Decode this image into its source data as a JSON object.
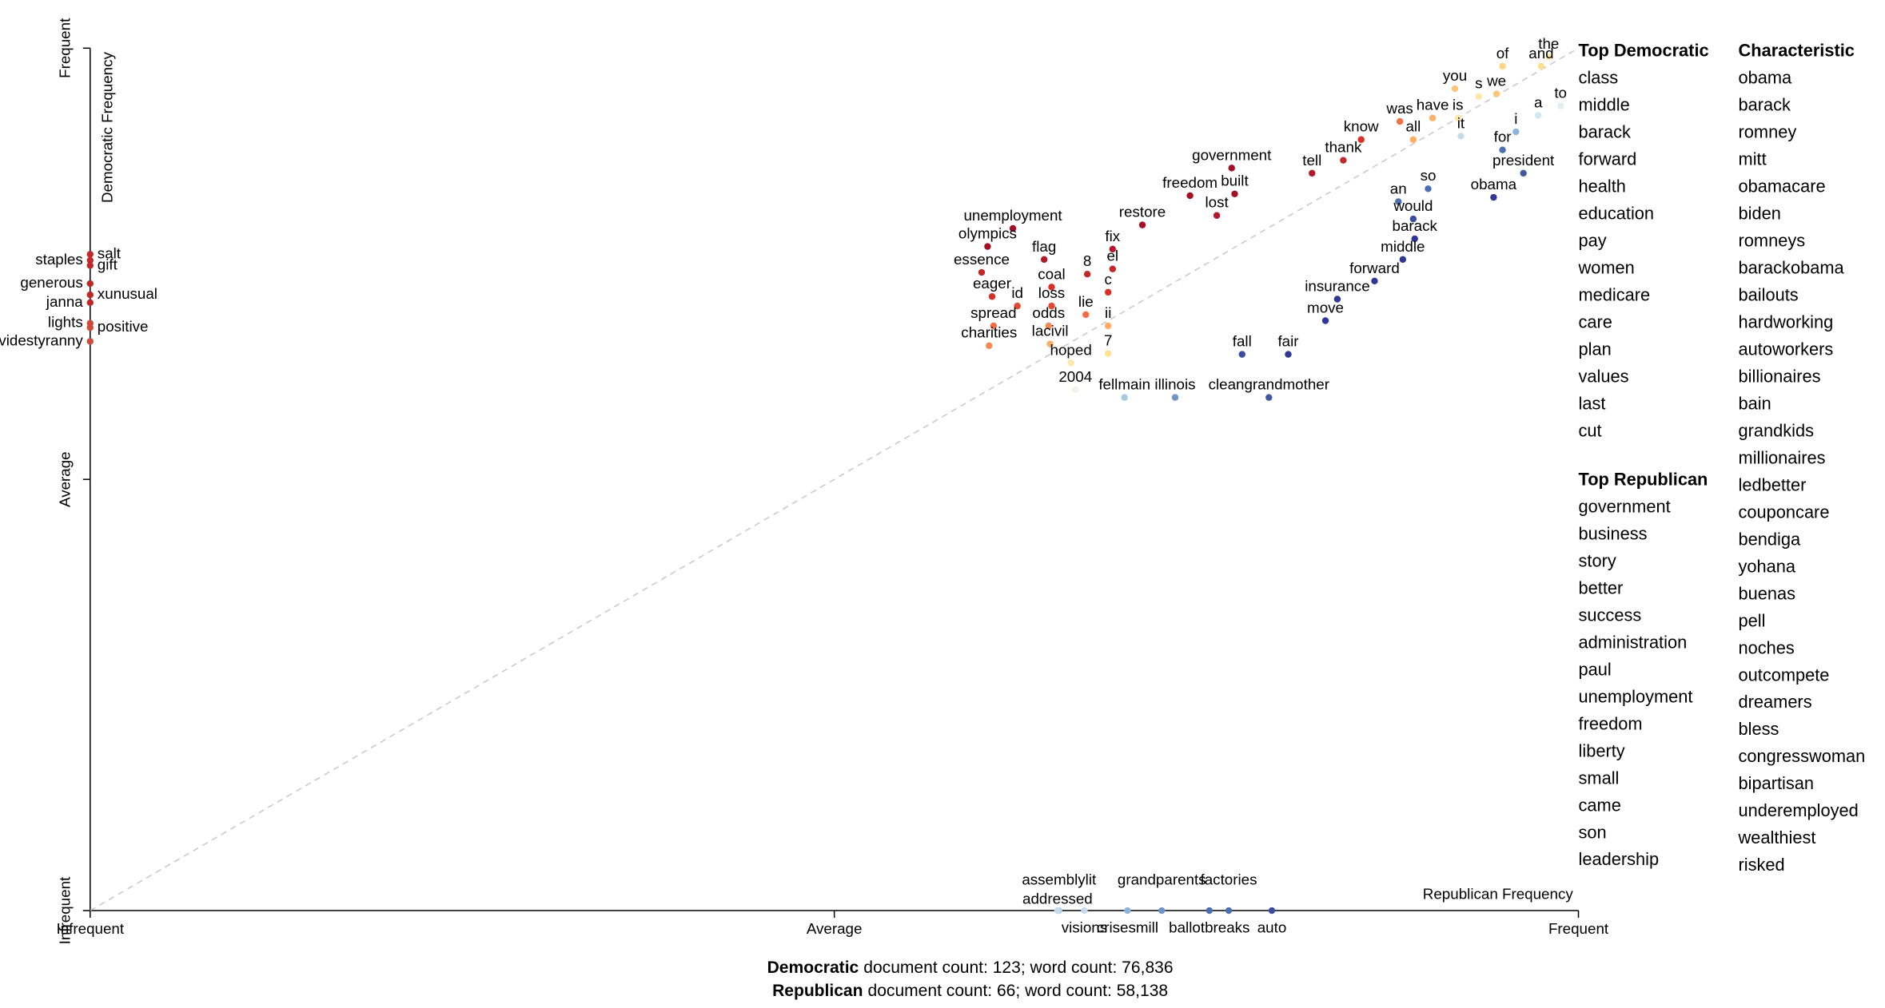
{
  "chart_data": {
    "type": "scatter",
    "x_label": "Republican Frequency",
    "y_label": "Democratic Frequency",
    "xlim": [
      0,
      1
    ],
    "ylim": [
      0,
      1
    ],
    "xticks": [
      {
        "value": 0,
        "label": "Infrequent"
      },
      {
        "value": 0.5,
        "label": "Average"
      },
      {
        "value": 1,
        "label": "Frequent"
      }
    ],
    "yticks": [
      {
        "value": 0,
        "label": "Infrequent"
      },
      {
        "value": 0.5,
        "label": "Average"
      },
      {
        "value": 1,
        "label": "Frequent"
      }
    ],
    "diagonal_line": true,
    "points": [
      {
        "label": "the",
        "x": 0.98,
        "y": 0.99,
        "color": "#fee8a8"
      },
      {
        "label": "and",
        "x": 0.975,
        "y": 0.979,
        "color": "#fee090"
      },
      {
        "label": "of",
        "x": 0.949,
        "y": 0.979,
        "color": "#fdd68a"
      },
      {
        "label": "you",
        "x": 0.917,
        "y": 0.953,
        "color": "#fdc57a"
      },
      {
        "label": "s",
        "x": 0.933,
        "y": 0.944,
        "color": "#fee8a8"
      },
      {
        "label": "we",
        "x": 0.945,
        "y": 0.947,
        "color": "#fdc57a"
      },
      {
        "label": "to",
        "x": 0.988,
        "y": 0.933,
        "color": "#e0f0f0"
      },
      {
        "label": "a",
        "x": 0.973,
        "y": 0.922,
        "color": "#d0e8f0"
      },
      {
        "label": "i",
        "x": 0.958,
        "y": 0.903,
        "color": "#8fb4d9"
      },
      {
        "label": "is",
        "x": 0.919,
        "y": 0.919,
        "color": "#fee8a8"
      },
      {
        "label": "have",
        "x": 0.902,
        "y": 0.919,
        "color": "#fdb26b"
      },
      {
        "label": "was",
        "x": 0.88,
        "y": 0.915,
        "color": "#f46d43"
      },
      {
        "label": "it",
        "x": 0.921,
        "y": 0.898,
        "color": "#c6dbea"
      },
      {
        "label": "all",
        "x": 0.889,
        "y": 0.894,
        "color": "#fdae61"
      },
      {
        "label": "know",
        "x": 0.854,
        "y": 0.894,
        "color": "#d73027"
      },
      {
        "label": "for",
        "x": 0.949,
        "y": 0.882,
        "color": "#4d6fb0"
      },
      {
        "label": "thank",
        "x": 0.842,
        "y": 0.87,
        "color": "#c0282a"
      },
      {
        "label": "president",
        "x": 0.963,
        "y": 0.855,
        "color": "#4059a3"
      },
      {
        "label": "tell",
        "x": 0.821,
        "y": 0.855,
        "color": "#b2182b"
      },
      {
        "label": "government",
        "x": 0.767,
        "y": 0.861,
        "color": "#a50f26"
      },
      {
        "label": "so",
        "x": 0.899,
        "y": 0.837,
        "color": "#4d6fb0"
      },
      {
        "label": "obama",
        "x": 0.943,
        "y": 0.827,
        "color": "#313695"
      },
      {
        "label": "an",
        "x": 0.879,
        "y": 0.822,
        "color": "#4d6fb0"
      },
      {
        "label": "freedom",
        "x": 0.739,
        "y": 0.829,
        "color": "#a50f26"
      },
      {
        "label": "built",
        "x": 0.769,
        "y": 0.831,
        "color": "#a50f26"
      },
      {
        "label": "lost",
        "x": 0.757,
        "y": 0.806,
        "color": "#b2182b"
      },
      {
        "label": "would",
        "x": 0.889,
        "y": 0.802,
        "color": "#3b4ba0"
      },
      {
        "label": "restore",
        "x": 0.707,
        "y": 0.795,
        "color": "#a50f26"
      },
      {
        "label": "barack",
        "x": 0.89,
        "y": 0.779,
        "color": "#313695"
      },
      {
        "label": "middle",
        "x": 0.882,
        "y": 0.755,
        "color": "#313695"
      },
      {
        "label": "unemployment",
        "x": 0.62,
        "y": 0.791,
        "color": "#a50f26"
      },
      {
        "label": "olympics",
        "x": 0.603,
        "y": 0.77,
        "color": "#a50f26"
      },
      {
        "label": "fix",
        "x": 0.687,
        "y": 0.767,
        "color": "#b2182b"
      },
      {
        "label": "flag",
        "x": 0.641,
        "y": 0.755,
        "color": "#b2182b"
      },
      {
        "label": "8",
        "x": 0.67,
        "y": 0.738,
        "color": "#c0282a"
      },
      {
        "label": "el",
        "x": 0.687,
        "y": 0.744,
        "color": "#c0282a"
      },
      {
        "label": "essence",
        "x": 0.599,
        "y": 0.74,
        "color": "#c0282a"
      },
      {
        "label": "forward",
        "x": 0.863,
        "y": 0.73,
        "color": "#313695"
      },
      {
        "label": "coal",
        "x": 0.646,
        "y": 0.723,
        "color": "#d73027"
      },
      {
        "label": "c",
        "x": 0.684,
        "y": 0.717,
        "color": "#d73027"
      },
      {
        "label": "eager",
        "x": 0.606,
        "y": 0.712,
        "color": "#d73027"
      },
      {
        "label": "insurance",
        "x": 0.838,
        "y": 0.709,
        "color": "#313695"
      },
      {
        "label": "id",
        "x": 0.623,
        "y": 0.701,
        "color": "#e04a33"
      },
      {
        "label": "loss",
        "x": 0.646,
        "y": 0.701,
        "color": "#e04a33"
      },
      {
        "label": "lie",
        "x": 0.669,
        "y": 0.691,
        "color": "#f46d43"
      },
      {
        "label": "spread",
        "x": 0.607,
        "y": 0.678,
        "color": "#f46d43"
      },
      {
        "label": "odds",
        "x": 0.644,
        "y": 0.678,
        "color": "#f68a51"
      },
      {
        "label": "ii",
        "x": 0.684,
        "y": 0.678,
        "color": "#fdae61"
      },
      {
        "label": "move",
        "x": 0.83,
        "y": 0.684,
        "color": "#313695"
      },
      {
        "label": "charities",
        "x": 0.604,
        "y": 0.655,
        "color": "#f68a51"
      },
      {
        "label": "lacivil",
        "x": 0.645,
        "y": 0.657,
        "color": "#fdae61"
      },
      {
        "label": "7",
        "x": 0.684,
        "y": 0.646,
        "color": "#fee090"
      },
      {
        "label": "fall",
        "x": 0.774,
        "y": 0.645,
        "color": "#3b4ba0"
      },
      {
        "label": "fair",
        "x": 0.805,
        "y": 0.645,
        "color": "#313695"
      },
      {
        "label": "hoped",
        "x": 0.659,
        "y": 0.635,
        "color": "#fee8a8"
      },
      {
        "label": "2004",
        "x": 0.662,
        "y": 0.604,
        "color": "#f0f4e0"
      },
      {
        "label": "fellmain",
        "x": 0.695,
        "y": 0.595,
        "color": "#a9cbe2"
      },
      {
        "label": "illinois",
        "x": 0.729,
        "y": 0.595,
        "color": "#6f95c8"
      },
      {
        "label": "cleangrandmother",
        "x": 0.792,
        "y": 0.595,
        "color": "#4059a3"
      },
      {
        "label": "staples",
        "x": 0,
        "y": 0.754,
        "color": "#c0282a"
      },
      {
        "label": "salt",
        "x": 0,
        "y": 0.761,
        "color": "#c0282a"
      },
      {
        "label": "generous",
        "x": 0,
        "y": 0.727,
        "color": "#c0282a"
      },
      {
        "label": "gift",
        "x": 0,
        "y": 0.748,
        "color": "#c0282a"
      },
      {
        "label": "janna",
        "x": 0,
        "y": 0.705,
        "color": "#c0282a"
      },
      {
        "label": "xunusual",
        "x": 0,
        "y": 0.714,
        "color": "#c0282a"
      },
      {
        "label": "lights",
        "x": 0,
        "y": 0.681,
        "color": "#d04a3a"
      },
      {
        "label": "positive",
        "x": 0,
        "y": 0.676,
        "color": "#d04a3a"
      },
      {
        "label": "dividestyranny",
        "x": 0,
        "y": 0.66,
        "color": "#d04a3a"
      },
      {
        "label": "assemblylit",
        "x": 0.651,
        "y": 0,
        "color": "#a9cbe2"
      },
      {
        "label": "visions",
        "x": 0.668,
        "y": 0,
        "color": "#c6dbea"
      },
      {
        "label": "grandparents",
        "x": 0.72,
        "y": 0,
        "color": "#6f95c8"
      },
      {
        "label": "crisesmill",
        "x": 0.697,
        "y": 0,
        "color": "#8fb4d9"
      },
      {
        "label": "factories",
        "x": 0.765,
        "y": 0,
        "color": "#4d6fb0"
      },
      {
        "label": "ballotbreaks",
        "x": 0.752,
        "y": 0,
        "color": "#4d6fb0"
      },
      {
        "label": "addressed",
        "x": 0.65,
        "y": 0,
        "color": "#c6dbea"
      },
      {
        "label": "auto",
        "x": 0.794,
        "y": 0,
        "color": "#3b4ba0"
      }
    ]
  },
  "lists": [
    {
      "title": "Top Democratic",
      "items": [
        "class",
        "middle",
        "barack",
        "forward",
        "health",
        "education",
        "pay",
        "women",
        "medicare",
        "care",
        "plan",
        "values",
        "last",
        "cut"
      ]
    },
    {
      "title": "Top Republican",
      "items": [
        "government",
        "business",
        "story",
        "better",
        "success",
        "administration",
        "paul",
        "unemployment",
        "freedom",
        "liberty",
        "small",
        "came",
        "son",
        "leadership"
      ]
    },
    {
      "title": "Characteristic",
      "items": [
        "obama",
        "barack",
        "romney",
        "mitt",
        "obamacare",
        "biden",
        "romneys",
        "barackobama",
        "bailouts",
        "hardworking",
        "autoworkers",
        "billionaires",
        "bain",
        "grandkids",
        "millionaires",
        "ledbetter",
        "couponcare",
        "bendiga",
        "yohana",
        "buenas",
        "pell",
        "noches",
        "outcompete",
        "dreamers",
        "bless",
        "congresswoman",
        "bipartisan",
        "underemployed",
        "wealthiest",
        "risked"
      ]
    }
  ],
  "footer": [
    {
      "party": "Democratic",
      "text": "document count: 123; word count: 76,836"
    },
    {
      "party": "Republican",
      "text": "document count: 66; word count: 58,138"
    }
  ]
}
